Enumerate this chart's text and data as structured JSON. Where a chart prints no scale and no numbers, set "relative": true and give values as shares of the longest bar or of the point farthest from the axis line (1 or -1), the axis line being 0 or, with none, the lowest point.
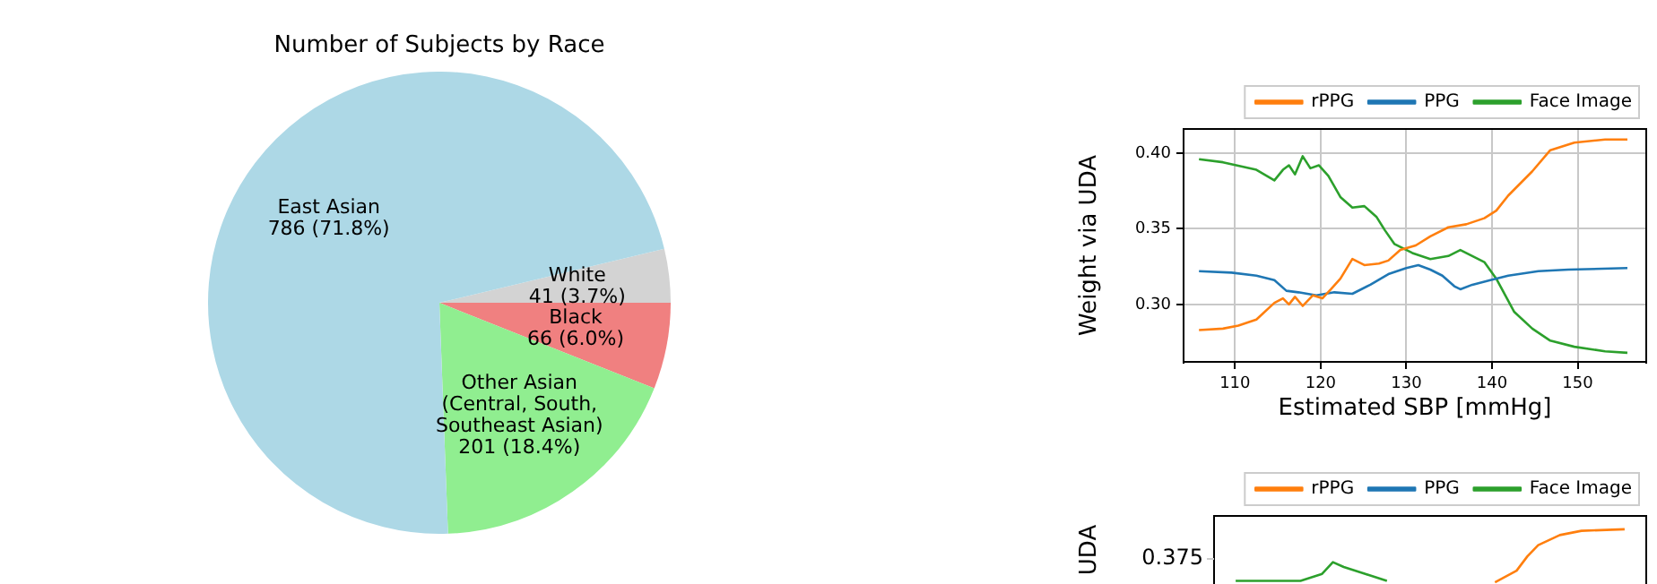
{
  "chart_data": [
    {
      "type": "pie",
      "title": "Number of Subjects by Race",
      "categories": [
        "White",
        "Black",
        "Other Asian\n(Central, South,\nSoutheast Asian)",
        "East Asian"
      ],
      "values": [
        41,
        66,
        201,
        786
      ],
      "colors": [
        "#d3d3d3",
        "#f08080",
        "#90ee90",
        "#add8e6"
      ],
      "value_labels": [
        "41 (3.7%)",
        "66 (6.0%)",
        "201 (18.4%)",
        "786 (71.8%)"
      ]
    },
    {
      "type": "line",
      "xlabel": "Estimated SBP [mmHg]",
      "ylabel": "Weight via UDA",
      "xlim": [
        104,
        158
      ],
      "xticks": [
        110,
        120,
        130,
        140,
        150
      ],
      "ylim": [
        0.262,
        0.416
      ],
      "yticks": [
        {
          "value": 0.3,
          "label": "0.30"
        },
        {
          "value": 0.35,
          "label": "0.35"
        },
        {
          "value": 0.4,
          "label": "0.40"
        }
      ],
      "grid": true,
      "legend": "top",
      "series": [
        {
          "name": "rPPG",
          "color": "#ff7f0e",
          "x": [
            105.8,
            108.6,
            110.4,
            112.5,
            114.6,
            115.6,
            116.3,
            117.0,
            117.9,
            119.1,
            120.2,
            121.2,
            122.3,
            123.7,
            125.1,
            126.8,
            127.9,
            129.3,
            131.1,
            132.8,
            134.9,
            137.0,
            139.1,
            140.5,
            141.9,
            144.7,
            146.8,
            149.6,
            153.2,
            155.8
          ],
          "values": [
            0.283,
            0.284,
            0.286,
            0.29,
            0.301,
            0.304,
            0.3,
            0.305,
            0.299,
            0.306,
            0.304,
            0.31,
            0.317,
            0.33,
            0.326,
            0.327,
            0.329,
            0.336,
            0.339,
            0.345,
            0.351,
            0.353,
            0.357,
            0.362,
            0.372,
            0.388,
            0.402,
            0.407,
            0.409,
            0.409
          ]
        },
        {
          "name": "PPG",
          "color": "#1f77b4",
          "x": [
            105.8,
            109.6,
            112.5,
            114.6,
            116.0,
            117.4,
            119.5,
            121.6,
            123.7,
            125.8,
            127.9,
            130.0,
            131.4,
            132.8,
            134.2,
            135.6,
            136.3,
            137.7,
            139.8,
            141.9,
            145.4,
            148.9,
            155.8
          ],
          "values": [
            0.322,
            0.321,
            0.319,
            0.316,
            0.309,
            0.308,
            0.306,
            0.308,
            0.307,
            0.313,
            0.32,
            0.324,
            0.326,
            0.323,
            0.319,
            0.312,
            0.31,
            0.313,
            0.316,
            0.319,
            0.322,
            0.323,
            0.324
          ]
        },
        {
          "name": "Face Image",
          "color": "#2ca02c",
          "x": [
            105.8,
            108.6,
            112.5,
            114.6,
            115.6,
            116.3,
            117.0,
            117.9,
            118.8,
            119.8,
            120.9,
            122.3,
            123.7,
            125.1,
            126.5,
            127.5,
            128.6,
            130.7,
            132.8,
            134.9,
            136.3,
            137.7,
            139.1,
            140.5,
            142.6,
            144.7,
            146.8,
            149.6,
            153.2,
            155.8
          ],
          "values": [
            0.396,
            0.394,
            0.389,
            0.382,
            0.389,
            0.392,
            0.386,
            0.398,
            0.39,
            0.392,
            0.385,
            0.371,
            0.364,
            0.365,
            0.358,
            0.349,
            0.34,
            0.334,
            0.33,
            0.332,
            0.336,
            0.332,
            0.328,
            0.317,
            0.295,
            0.284,
            0.276,
            0.272,
            0.269,
            0.268
          ]
        }
      ]
    },
    {
      "type": "line",
      "relative": true,
      "ylabel": "UDA",
      "annotations": [
        "0.375"
      ],
      "categories": [
        null,
        null,
        null,
        null,
        null,
        null,
        null,
        null,
        null,
        null,
        null,
        null,
        null,
        null,
        null,
        null,
        null,
        null,
        null,
        null,
        null,
        null,
        null,
        null,
        null,
        null,
        null,
        null,
        null,
        null,
        null,
        null,
        null,
        null,
        null,
        null,
        null,
        null,
        null,
        null,
        null
      ],
      "legend": "top",
      "tick_labels": false,
      "series": [
        {
          "name": "rPPG",
          "color": "#ff7f0e",
          "values": [
            null,
            null,
            null,
            null,
            null,
            null,
            null,
            null,
            null,
            null,
            null,
            null,
            null,
            null,
            null,
            null,
            null,
            null,
            null,
            null,
            null,
            null,
            null,
            null,
            null,
            null,
            0,
            null,
            0.22,
            0.49,
            0.7,
            null,
            0.89,
            null,
            0.97,
            null,
            null,
            null,
            1,
            null,
            null
          ]
        },
        {
          "name": "PPG",
          "color": "#1f77b4",
          "values": [
            null,
            null,
            null,
            null,
            null,
            null,
            null,
            null,
            null,
            null,
            null,
            null,
            null,
            null,
            null,
            null,
            null,
            null,
            null,
            null,
            null,
            null,
            null,
            null,
            null,
            null,
            null,
            null,
            null,
            null,
            null,
            null,
            null,
            null,
            null,
            null,
            null,
            null,
            null,
            null,
            null
          ]
        },
        {
          "name": "Face Image",
          "color": "#2ca02c",
          "values": [
            null,
            null,
            0.03,
            null,
            null,
            null,
            null,
            null,
            0.03,
            null,
            0.16,
            0.38,
            0.29,
            null,
            0.16,
            null,
            0.03,
            null,
            null,
            null,
            null,
            null,
            null,
            null,
            null,
            null,
            null,
            null,
            null,
            null,
            null,
            null,
            null,
            null,
            null,
            null,
            null,
            null,
            null,
            null,
            null
          ]
        }
      ]
    }
  ]
}
